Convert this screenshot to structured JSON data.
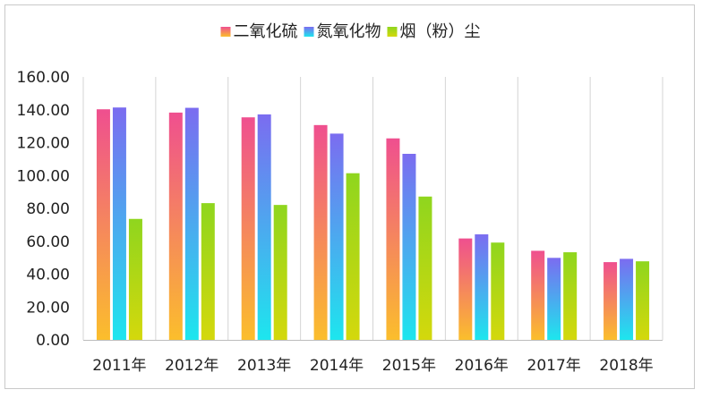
{
  "chart_data": {
    "type": "bar",
    "title": "",
    "xlabel": "",
    "ylabel": "",
    "categories": [
      "2011年",
      "2012年",
      "2013年",
      "2014年",
      "2015年",
      "2016年",
      "2017年",
      "2018年"
    ],
    "series": [
      {
        "name": "二氧化硫",
        "values": [
          140.3,
          138.3,
          135.4,
          130.7,
          122.6,
          61.7,
          54.2,
          47.3
        ],
        "gradient": [
          "#ef4f8f",
          "#fbbe2c"
        ]
      },
      {
        "name": "氮氧化物",
        "values": [
          141.4,
          141.2,
          137.2,
          125.5,
          113.2,
          64.2,
          49.9,
          49.3
        ],
        "gradient": [
          "#7b6cf0",
          "#1de6ee"
        ]
      },
      {
        "name": "烟（粉）尘",
        "values": [
          73.6,
          83.2,
          82.1,
          101.4,
          87.2,
          59.2,
          53.3,
          47.8
        ],
        "gradient": [
          "#8fd61e",
          "#d4d80c"
        ]
      }
    ],
    "ylim": [
      0,
      160
    ],
    "yticks": [
      "0.00",
      "20.00",
      "40.00",
      "60.00",
      "80.00",
      "100.00",
      "120.00",
      "140.00",
      "160.00"
    ],
    "grid": "vertical-category-lines",
    "legend": "top-center"
  }
}
